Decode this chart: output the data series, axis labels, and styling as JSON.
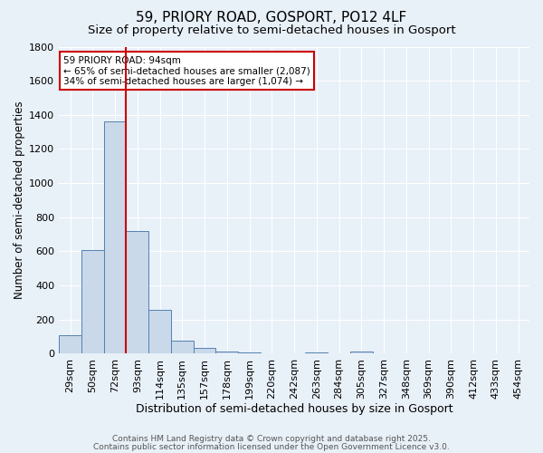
{
  "title1": "59, PRIORY ROAD, GOSPORT, PO12 4LF",
  "title2": "Size of property relative to semi-detached houses in Gosport",
  "xlabel": "Distribution of semi-detached houses by size in Gosport",
  "ylabel": "Number of semi-detached properties",
  "bin_labels": [
    "29sqm",
    "50sqm",
    "72sqm",
    "93sqm",
    "114sqm",
    "135sqm",
    "157sqm",
    "178sqm",
    "199sqm",
    "220sqm",
    "242sqm",
    "263sqm",
    "284sqm",
    "305sqm",
    "327sqm",
    "348sqm",
    "369sqm",
    "390sqm",
    "412sqm",
    "433sqm",
    "454sqm"
  ],
  "bar_values": [
    110,
    610,
    1360,
    720,
    255,
    75,
    35,
    15,
    5,
    0,
    0,
    5,
    0,
    15,
    0,
    0,
    0,
    0,
    0,
    0,
    0
  ],
  "bar_color": "#c9d9ea",
  "bar_edge_color": "#5580b0",
  "red_line_color": "#cc0000",
  "annotation_text": "59 PRIORY ROAD: 94sqm\n← 65% of semi-detached houses are smaller (2,087)\n34% of semi-detached houses are larger (1,074) →",
  "annotation_box_color": "white",
  "annotation_box_edge_color": "#cc0000",
  "ylim": [
    0,
    1800
  ],
  "yticks": [
    0,
    200,
    400,
    600,
    800,
    1000,
    1200,
    1400,
    1600,
    1800
  ],
  "background_color": "#e8f0f8",
  "grid_color": "white",
  "footer1": "Contains HM Land Registry data © Crown copyright and database right 2025.",
  "footer2": "Contains public sector information licensed under the Open Government Licence v3.0.",
  "title1_fontsize": 11,
  "title2_fontsize": 9.5,
  "xlabel_fontsize": 9,
  "ylabel_fontsize": 8.5,
  "tick_fontsize": 8,
  "footer_fontsize": 6.5,
  "red_line_bin_index": 3
}
